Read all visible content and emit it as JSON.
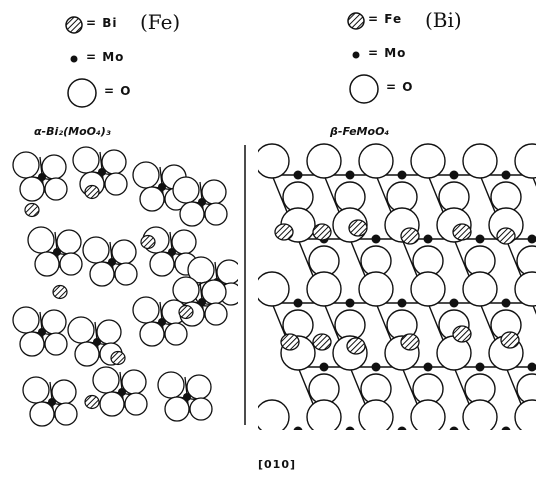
{
  "legend_left": {
    "items": [
      {
        "symbol": "hatched",
        "label": "= Bi"
      },
      {
        "symbol": "dot",
        "label": "= Mo"
      },
      {
        "symbol": "circle",
        "label": "= O"
      }
    ],
    "alt_element": "(Fe)"
  },
  "legend_right": {
    "items": [
      {
        "symbol": "hatched",
        "label": "= Fe"
      },
      {
        "symbol": "dot",
        "label": "= Mo"
      },
      {
        "symbol": "circle",
        "label": "= O"
      }
    ],
    "alt_element": "(Bi)"
  },
  "panels": {
    "left_title": "α-Bi₂(MoO₄)₃",
    "right_title": "β-FeMoO₄"
  },
  "direction_label": "[010]"
}
